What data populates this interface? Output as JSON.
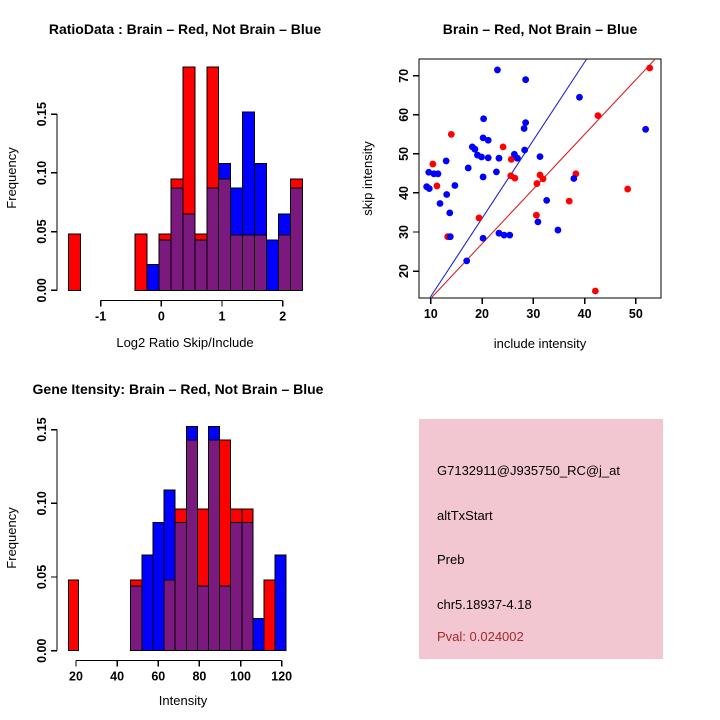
{
  "window_title": "R Graphics: splicing diagnostic plots",
  "colors": {
    "red": "#ff0000",
    "blue": "#0000ff",
    "purple": "#7c197e",
    "red_line": "#d42222",
    "blue_line": "#2222d4",
    "axis": "#000000",
    "panel_pink": "#f3c7d1",
    "pval_red": "#a52a2a",
    "text_black": "#000000"
  },
  "chart_data": [
    {
      "id": "ratio_hist",
      "type": "bar",
      "subtype": "overlaid-histogram",
      "title": "RatioData : Brain – Red, Not Brain – Blue",
      "xlabel": "Log2 Ratio Skip/Include",
      "ylabel": "Frequency",
      "xticks": [
        -1,
        0,
        1,
        2
      ],
      "ytick_vals": [
        0,
        0.05,
        0.1,
        0.15
      ],
      "ytick_labels": [
        "0.00",
        "0.05",
        "0.10",
        "0.15"
      ],
      "xlim": [
        -1.69,
        2.48
      ],
      "ylim": [
        0,
        0.198
      ],
      "legend_note": "red = Brain, blue = Not Brain, purple = overlap",
      "bars": [
        {
          "x0": -1.532,
          "x1": -1.335,
          "cap": "red",
          "h": 0.048,
          "ov": 0
        },
        {
          "x0": -0.433,
          "x1": -0.236,
          "cap": "red",
          "h": 0.048,
          "ov": 0
        },
        {
          "x0": -0.236,
          "x1": -0.039,
          "cap": "blue",
          "h": 0.022,
          "ov": 0
        },
        {
          "x0": -0.039,
          "x1": 0.158,
          "cap": "red",
          "h": 0.048,
          "ov": 0.043
        },
        {
          "x0": 0.158,
          "x1": 0.355,
          "cap": "red",
          "h": 0.095,
          "ov": 0.087
        },
        {
          "x0": 0.355,
          "x1": 0.552,
          "cap": "red",
          "h": 0.19,
          "ov": 0.065
        },
        {
          "x0": 0.552,
          "x1": 0.749,
          "cap": "red",
          "h": 0.048,
          "ov": 0.043
        },
        {
          "x0": 0.749,
          "x1": 0.946,
          "cap": "red",
          "h": 0.19,
          "ov": 0.087
        },
        {
          "x0": 0.946,
          "x1": 1.143,
          "cap": "blue",
          "h": 0.108,
          "ov": 0.095
        },
        {
          "x0": 1.143,
          "x1": 1.34,
          "cap": "blue",
          "h": 0.087,
          "ov": 0.047
        },
        {
          "x0": 1.34,
          "x1": 1.537,
          "cap": "blue",
          "h": 0.152,
          "ov": 0.047
        },
        {
          "x0": 1.537,
          "x1": 1.734,
          "cap": "blue",
          "h": 0.108,
          "ov": 0.047
        },
        {
          "x0": 1.734,
          "x1": 1.931,
          "cap": "blue",
          "h": 0.043,
          "ov": 0
        },
        {
          "x0": 1.931,
          "x1": 2.128,
          "cap": "blue",
          "h": 0.065,
          "ov": 0.047
        },
        {
          "x0": 2.128,
          "x1": 2.325,
          "cap": "red",
          "h": 0.095,
          "ov": 0.087
        }
      ]
    },
    {
      "id": "intensity_scatter",
      "type": "scatter",
      "title": "Brain – Red, Not Brain – Blue",
      "xlabel": "include intensity",
      "ylabel": "skip intensity",
      "xticks": [
        10,
        20,
        30,
        40,
        50
      ],
      "yticks": [
        20,
        30,
        40,
        50,
        60,
        70
      ],
      "xlim": [
        7.7,
        54.9
      ],
      "ylim": [
        13.1,
        74.3
      ],
      "series": [
        {
          "name": "Brain",
          "color_key": "red",
          "points": [
            [
              52.7,
              72.0
            ],
            [
              42.6,
              59.8
            ],
            [
              14.0,
              55.0
            ],
            [
              24.1,
              51.8
            ],
            [
              25.7,
              48.6
            ],
            [
              10.4,
              47.4
            ],
            [
              11.2,
              41.8
            ],
            [
              31.3,
              44.6
            ],
            [
              31.9,
              43.6
            ],
            [
              30.7,
              42.4
            ],
            [
              25.6,
              44.4
            ],
            [
              26.4,
              43.8
            ],
            [
              38.3,
              44.9
            ],
            [
              48.4,
              41.0
            ],
            [
              37.0,
              37.9
            ],
            [
              30.6,
              34.3
            ],
            [
              19.4,
              33.6
            ],
            [
              13.3,
              28.8
            ],
            [
              42.1,
              14.9
            ]
          ]
        },
        {
          "name": "Not Brain",
          "color_key": "blue",
          "points": [
            [
              23.0,
              71.5
            ],
            [
              28.5,
              69.0
            ],
            [
              39.0,
              64.5
            ],
            [
              20.3,
              59.0
            ],
            [
              28.5,
              58.0
            ],
            [
              28.2,
              56.5
            ],
            [
              51.9,
              56.3
            ],
            [
              20.2,
              54.1
            ],
            [
              21.2,
              53.5
            ],
            [
              18.1,
              51.8
            ],
            [
              18.6,
              51.2
            ],
            [
              28.3,
              51.0
            ],
            [
              26.3,
              49.9
            ],
            [
              26.9,
              48.9
            ],
            [
              23.3,
              48.9
            ],
            [
              31.3,
              49.3
            ],
            [
              19.1,
              49.7
            ],
            [
              19.9,
              49.2
            ],
            [
              21.2,
              49.0
            ],
            [
              13.0,
              48.2
            ],
            [
              17.3,
              46.4
            ],
            [
              22.8,
              45.4
            ],
            [
              9.6,
              45.3
            ],
            [
              10.6,
              44.9
            ],
            [
              11.4,
              44.9
            ],
            [
              20.2,
              44.1
            ],
            [
              37.9,
              43.7
            ],
            [
              9.2,
              41.6
            ],
            [
              9.7,
              41.1
            ],
            [
              14.7,
              41.9
            ],
            [
              13.1,
              39.6
            ],
            [
              11.8,
              37.3
            ],
            [
              13.7,
              34.9
            ],
            [
              32.6,
              38.1
            ],
            [
              30.9,
              32.6
            ],
            [
              34.8,
              30.5
            ],
            [
              23.3,
              29.7
            ],
            [
              24.3,
              29.2
            ],
            [
              25.4,
              29.2
            ],
            [
              13.8,
              28.8
            ],
            [
              20.2,
              28.4
            ],
            [
              17.0,
              22.6
            ]
          ]
        }
      ],
      "lines": [
        {
          "name": "not-brain-fit",
          "color_key": "blue_line",
          "slope": 2.0,
          "intercept": -6.5
        },
        {
          "name": "brain-fit",
          "color_key": "red_line",
          "slope": 1.4,
          "intercept": -1.0
        }
      ]
    },
    {
      "id": "gene_hist",
      "type": "bar",
      "subtype": "overlaid-histogram",
      "title": "Gene Itensity: Brain – Red, Not Brain – Blue",
      "xlabel": "Intensity",
      "ylabel": "Frequency",
      "xticks": [
        20,
        40,
        60,
        80,
        100,
        120
      ],
      "ytick_vals": [
        0,
        0.05,
        0.1,
        0.15
      ],
      "ytick_labels": [
        "0.00",
        "0.05",
        "0.10",
        "0.15"
      ],
      "xlim": [
        12.1,
        126.4
      ],
      "ylim": [
        0,
        0.158
      ],
      "legend_note": "red = Brain, blue = Not Brain, purple = overlap",
      "bars": [
        {
          "x0": 16.3,
          "x1": 21.2,
          "cap": "red",
          "h": 0.048,
          "ov": 0
        },
        {
          "x0": 46.6,
          "x1": 52.0,
          "cap": "red",
          "h": 0.048,
          "ov": 0.044
        },
        {
          "x0": 52.0,
          "x1": 57.4,
          "cap": "blue",
          "h": 0.065,
          "ov": 0
        },
        {
          "x0": 57.4,
          "x1": 62.8,
          "cap": "blue",
          "h": 0.087,
          "ov": 0
        },
        {
          "x0": 62.8,
          "x1": 68.2,
          "cap": "blue",
          "h": 0.109,
          "ov": 0.048
        },
        {
          "x0": 68.2,
          "x1": 73.6,
          "cap": "red",
          "h": 0.096,
          "ov": 0.087
        },
        {
          "x0": 73.6,
          "x1": 79.0,
          "cap": "blue",
          "h": 0.152,
          "ov": 0.143
        },
        {
          "x0": 79.0,
          "x1": 84.4,
          "cap": "red",
          "h": 0.096,
          "ov": 0.044
        },
        {
          "x0": 84.4,
          "x1": 89.8,
          "cap": "blue",
          "h": 0.152,
          "ov": 0.143
        },
        {
          "x0": 89.8,
          "x1": 95.2,
          "cap": "red",
          "h": 0.143,
          "ov": 0.044
        },
        {
          "x0": 95.2,
          "x1": 100.6,
          "cap": "red",
          "h": 0.096,
          "ov": 0.087
        },
        {
          "x0": 100.6,
          "x1": 106.0,
          "cap": "red",
          "h": 0.096,
          "ov": 0.087
        },
        {
          "x0": 106.0,
          "x1": 111.4,
          "cap": "blue",
          "h": 0.022,
          "ov": 0
        },
        {
          "x0": 111.4,
          "x1": 116.8,
          "cap": "red",
          "h": 0.048,
          "ov": 0
        },
        {
          "x0": 116.8,
          "x1": 122.2,
          "cap": "blue",
          "h": 0.065,
          "ov": 0
        }
      ]
    }
  ],
  "info_panel": {
    "bg": "#f3c7d1",
    "lines": [
      {
        "text": "G7132911@J935750_RC@j_at",
        "color": "#000000"
      },
      {
        "text": "altTxStart",
        "color": "#000000"
      },
      {
        "text": "Preb",
        "color": "#000000"
      },
      {
        "text": "chr5.18937-4.18",
        "color": "#000000"
      },
      {
        "text": "Pval: 0.024002",
        "color": "#a52a2a"
      }
    ]
  }
}
